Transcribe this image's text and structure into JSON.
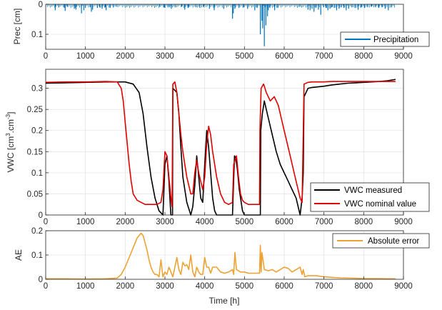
{
  "colors": {
    "precip": "#0072BD",
    "measured": "#000000",
    "nominal": "#E00000",
    "error": "#EDA233",
    "axis": "#262626",
    "grid": "#dcdcdc"
  },
  "chart_data": [
    {
      "type": "bar",
      "ylabel": "Prec [cm]",
      "reversed_y": true,
      "xlim": [
        0,
        9000
      ],
      "ylim": [
        0,
        0.15
      ],
      "xticks": [
        "0",
        "1000",
        "2000",
        "3000",
        "4000",
        "5000",
        "6000",
        "7000",
        "8000",
        "9000"
      ],
      "yticks": [
        {
          "v": 0,
          "label": "0"
        },
        {
          "v": 0.1,
          "label": "0.1"
        }
      ],
      "grid": true,
      "legend_position": "bottom-right",
      "series": [
        {
          "name": "Precipitation",
          "color": "#0072BD",
          "x": [
            240,
            330,
            470,
            490,
            540,
            720,
            760,
            900,
            960,
            1000,
            1120,
            1150,
            1180,
            1300,
            1360,
            1420,
            1500,
            1520,
            1620,
            1700,
            1780,
            2860,
            2980,
            3000,
            3080,
            3120,
            3160,
            3260,
            3420,
            3500,
            3580,
            3600,
            3780,
            3880,
            3980,
            4120,
            4240,
            4480,
            4700,
            4720,
            4760,
            4860,
            4980,
            5080,
            5260,
            5320,
            5400,
            5440,
            5460,
            5500,
            5540,
            5580,
            5600,
            5640,
            5760,
            5840,
            6400,
            6600,
            6650,
            6700,
            6750,
            6800,
            6860,
            6920,
            6990,
            7050,
            7100,
            7150,
            7200,
            7260,
            7320,
            7380,
            7440,
            7500,
            7560,
            7620,
            7700,
            7780,
            7860,
            7940,
            8020,
            8100,
            8200,
            8300,
            8380,
            8460,
            8540,
            8620,
            8700
          ],
          "values": [
            0.02,
            0.01,
            0.012,
            0.022,
            0.008,
            0.015,
            0.018,
            0.03,
            0.02,
            0.012,
            0.01,
            0.025,
            0.018,
            0.012,
            0.01,
            0.015,
            0.01,
            0.02,
            0.012,
            0.01,
            0.008,
            0.008,
            0.01,
            0.012,
            0.008,
            0.01,
            0.015,
            0.01,
            0.008,
            0.018,
            0.012,
            0.008,
            0.01,
            0.012,
            0.01,
            0.015,
            0.02,
            0.015,
            0.048,
            0.03,
            0.015,
            0.012,
            0.01,
            0.015,
            0.02,
            0.012,
            0.1,
            0.055,
            0.08,
            0.14,
            0.07,
            0.04,
            0.02,
            0.012,
            0.02,
            0.012,
            0.008,
            0.018,
            0.02,
            0.015,
            0.025,
            0.012,
            0.018,
            0.035,
            0.01,
            0.012,
            0.02,
            0.015,
            0.01,
            0.012,
            0.02,
            0.015,
            0.01,
            0.012,
            0.02,
            0.015,
            0.01,
            0.012,
            0.018,
            0.01,
            0.012,
            0.01,
            0.008,
            0.01,
            0.012,
            0.01,
            0.015,
            0.02,
            0.01
          ]
        }
      ]
    },
    {
      "type": "line",
      "ylabel_base": "VWC [cm",
      "ylabel_sup1": "3",
      "ylabel_mid": ".cm",
      "ylabel_sup2": "-3",
      "ylabel_end": "]",
      "xlim": [
        0,
        9000
      ],
      "ylim": [
        0,
        0.345
      ],
      "xticks": [
        "0",
        "1000",
        "2000",
        "3000",
        "4000",
        "5000",
        "6000",
        "7000",
        "8000",
        "9000"
      ],
      "yticks": [
        {
          "v": 0,
          "label": "0"
        },
        {
          "v": 0.05,
          "label": "0.05"
        },
        {
          "v": 0.1,
          "label": "0.1"
        },
        {
          "v": 0.15,
          "label": "0.15"
        },
        {
          "v": 0.2,
          "label": "0.2"
        },
        {
          "v": 0.25,
          "label": "0.25"
        },
        {
          "v": 0.3,
          "label": "0.3"
        }
      ],
      "grid": true,
      "legend_position": "bottom-right",
      "series": [
        {
          "name": "VWC measured",
          "color": "#000000",
          "x": [
            0,
            500,
            1000,
            1500,
            2000,
            2200,
            2350,
            2450,
            2550,
            2650,
            2750,
            2850,
            2950,
            3000,
            3050,
            3100,
            3150,
            3190,
            3200,
            3300,
            3350,
            3400,
            3450,
            3550,
            3650,
            3700,
            3750,
            3800,
            3850,
            3900,
            3950,
            4000,
            4050,
            4100,
            4150,
            4200,
            4250,
            4300,
            4400,
            4500,
            4600,
            4700,
            4750,
            4780,
            4820,
            4870,
            4950,
            5000,
            5100,
            5300,
            5400,
            5410,
            5450,
            5500,
            5550,
            5600,
            5700,
            5800,
            5900,
            6000,
            6100,
            6200,
            6300,
            6350,
            6400,
            6450,
            6480,
            6500,
            6550,
            6600,
            6700,
            7000,
            7200,
            7400,
            7600,
            7800,
            8000,
            8200,
            8400,
            8600,
            8800
          ],
          "y": [
            0.312,
            0.313,
            0.314,
            0.315,
            0.315,
            0.31,
            0.29,
            0.24,
            0.16,
            0.09,
            0.04,
            0.01,
            0.0,
            0.12,
            0.14,
            0.08,
            0.0,
            0.0,
            0.3,
            0.29,
            0.24,
            0.16,
            0.09,
            0.03,
            0.0,
            0.02,
            0.07,
            0.14,
            0.09,
            0.04,
            0.03,
            0.12,
            0.2,
            0.16,
            0.1,
            0.04,
            0.01,
            0.0,
            0.0,
            0.0,
            0.0,
            0.0,
            0.14,
            0.135,
            0.11,
            0.06,
            0.01,
            0.0,
            0.0,
            0.0,
            0.0,
            0.2,
            0.24,
            0.27,
            0.25,
            0.23,
            0.19,
            0.15,
            0.12,
            0.1,
            0.08,
            0.06,
            0.04,
            0.02,
            0.0,
            0.04,
            0.1,
            0.28,
            0.29,
            0.3,
            0.302,
            0.305,
            0.308,
            0.31,
            0.312,
            0.313,
            0.314,
            0.315,
            0.316,
            0.318,
            0.321
          ]
        },
        {
          "name": "VWC nominal value",
          "color": "#E00000",
          "x": [
            0,
            500,
            1000,
            1500,
            1800,
            1900,
            1950,
            2000,
            2050,
            2100,
            2150,
            2200,
            2300,
            2400,
            2500,
            2600,
            2700,
            2800,
            2900,
            2950,
            3000,
            3050,
            3100,
            3150,
            3180,
            3200,
            3250,
            3300,
            3350,
            3400,
            3450,
            3500,
            3550,
            3600,
            3650,
            3700,
            3750,
            3800,
            3850,
            3900,
            3950,
            4000,
            4050,
            4100,
            4150,
            4200,
            4300,
            4400,
            4500,
            4600,
            4700,
            4730,
            4800,
            4850,
            4900,
            4950,
            5000,
            5100,
            5200,
            5300,
            5380,
            5390,
            5420,
            5480,
            5500,
            5550,
            5650,
            5750,
            5850,
            5950,
            6050,
            6150,
            6250,
            6350,
            6400,
            6450,
            6500,
            6550,
            6600,
            6700,
            7000,
            7200,
            7400,
            7600,
            7800,
            8000,
            8200,
            8400,
            8600,
            8800
          ],
          "y": [
            0.314,
            0.315,
            0.315,
            0.316,
            0.315,
            0.3,
            0.27,
            0.22,
            0.17,
            0.12,
            0.08,
            0.05,
            0.035,
            0.03,
            0.025,
            0.025,
            0.025,
            0.025,
            0.03,
            0.06,
            0.15,
            0.14,
            0.09,
            0.04,
            0.02,
            0.31,
            0.315,
            0.29,
            0.24,
            0.19,
            0.15,
            0.12,
            0.09,
            0.07,
            0.05,
            0.05,
            0.1,
            0.13,
            0.1,
            0.08,
            0.06,
            0.09,
            0.17,
            0.21,
            0.19,
            0.15,
            0.09,
            0.05,
            0.03,
            0.025,
            0.03,
            0.12,
            0.14,
            0.09,
            0.05,
            0.035,
            0.03,
            0.025,
            0.025,
            0.025,
            0.025,
            0.2,
            0.3,
            0.31,
            0.305,
            0.29,
            0.27,
            0.28,
            0.26,
            0.22,
            0.18,
            0.14,
            0.1,
            0.06,
            0.04,
            0.03,
            0.31,
            0.312,
            0.314,
            0.315,
            0.315,
            0.316,
            0.316,
            0.316,
            0.316,
            0.316,
            0.316,
            0.316,
            0.316,
            0.316
          ]
        }
      ]
    },
    {
      "type": "line",
      "ylabel": "AE",
      "xlabel": "Time [h]",
      "xlim": [
        0,
        9000
      ],
      "ylim": [
        0,
        0.2
      ],
      "xticks": [
        "0",
        "1000",
        "2000",
        "3000",
        "4000",
        "5000",
        "6000",
        "7000",
        "8000",
        "9000"
      ],
      "yticks": [
        {
          "v": 0,
          "label": "0"
        },
        {
          "v": 0.1,
          "label": "0.1"
        },
        {
          "v": 0.2,
          "label": "0.2"
        }
      ],
      "grid": true,
      "legend_position": "top-right",
      "series": [
        {
          "name": "Absolute error",
          "color": "#EDA233",
          "x": [
            0,
            500,
            1000,
            1500,
            1800,
            1900,
            2000,
            2100,
            2200,
            2300,
            2400,
            2450,
            2500,
            2550,
            2600,
            2650,
            2700,
            2750,
            2800,
            2850,
            2900,
            2950,
            3000,
            3050,
            3100,
            3150,
            3200,
            3250,
            3300,
            3350,
            3400,
            3450,
            3500,
            3550,
            3600,
            3650,
            3700,
            3750,
            3800,
            3850,
            3900,
            3950,
            4000,
            4050,
            4100,
            4150,
            4200,
            4300,
            4400,
            4500,
            4600,
            4700,
            4730,
            4760,
            4800,
            4900,
            5000,
            5100,
            5200,
            5300,
            5380,
            5400,
            5420,
            5440,
            5500,
            5600,
            5700,
            5800,
            5900,
            6000,
            6100,
            6200,
            6300,
            6400,
            6450,
            6480,
            6520,
            6600,
            6800,
            7000,
            7200,
            7400,
            7600,
            7800,
            8000,
            8200,
            8400,
            8600,
            8800
          ],
          "y": [
            0.002,
            0.002,
            0.001,
            0.002,
            0.005,
            0.02,
            0.05,
            0.09,
            0.13,
            0.17,
            0.19,
            0.18,
            0.15,
            0.12,
            0.08,
            0.05,
            0.03,
            0.02,
            0.02,
            0.01,
            0.08,
            0.01,
            0.03,
            0.02,
            0.05,
            0.03,
            0.01,
            0.05,
            0.09,
            0.04,
            0.02,
            0.07,
            0.055,
            0.06,
            0.04,
            0.1,
            0.03,
            0.01,
            0.05,
            0.03,
            0.02,
            0.02,
            0.09,
            0.05,
            0.05,
            0.025,
            0.05,
            0.05,
            0.03,
            0.025,
            0.03,
            0.04,
            0.02,
            0.11,
            0.04,
            0.03,
            0.03,
            0.025,
            0.025,
            0.025,
            0.025,
            0.14,
            0.03,
            0.11,
            0.04,
            0.035,
            0.04,
            0.03,
            0.04,
            0.05,
            0.045,
            0.03,
            0.04,
            0.05,
            0.02,
            0.04,
            0.01,
            0.015,
            0.015,
            0.01,
            0.008,
            0.006,
            0.005,
            0.004,
            0.003,
            0.003,
            0.003,
            0.002,
            0.002
          ]
        }
      ]
    }
  ]
}
